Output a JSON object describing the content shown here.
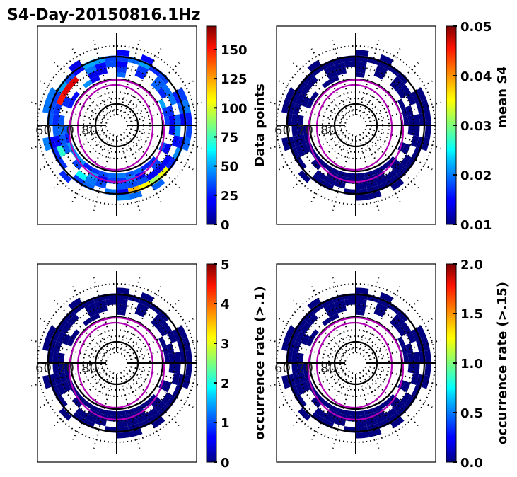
{
  "chart_data": {
    "type": "heatmap",
    "title": "S4-Day-20150816.1Hz",
    "projection": "polar (magnetic latitude vs local time)",
    "lat_rings": [
      80,
      70,
      60
    ],
    "lat_ring_labels": [
      "60",
      "70",
      "80"
    ],
    "colormap": "jet",
    "panels": [
      {
        "id": "data-points",
        "colorbar_label": "Data points",
        "clim": [
          0,
          170
        ],
        "ticks": [
          0,
          25,
          50,
          75,
          100,
          125,
          150
        ],
        "tick_labels": [
          "0",
          "25",
          "50",
          "75",
          "100",
          "125",
          "150"
        ],
        "description": "Counts mostly 10-60 in band 60-70 lat; peaks ~170 near 10-11 o'clock, ~120 near 5 o'clock"
      },
      {
        "id": "mean-s4",
        "colorbar_label": "mean S4",
        "clim": [
          0.01,
          0.05
        ],
        "ticks": [
          0.01,
          0.02,
          0.03,
          0.04,
          0.05
        ],
        "tick_labels": [
          "0.01",
          "0.02",
          "0.03",
          "0.04",
          "0.05"
        ],
        "description": "All bins at ~0.01 (dark blue)"
      },
      {
        "id": "occurrence-rate-0.1",
        "colorbar_label": "occurrence rate (>.1)",
        "clim": [
          0,
          5
        ],
        "ticks": [
          0,
          1,
          2,
          3,
          4,
          5
        ],
        "tick_labels": [
          "0",
          "1",
          "2",
          "3",
          "4",
          "5"
        ],
        "description": "All bins at ~0 (dark blue)"
      },
      {
        "id": "occurrence-rate-0.15",
        "colorbar_label": "occurrence rate (>.15)",
        "clim": [
          0,
          2
        ],
        "ticks": [
          0,
          0.5,
          1,
          1.5,
          2
        ],
        "tick_labels": [
          "0.0",
          "0.5",
          "1.0",
          "1.5",
          "2.0"
        ],
        "description": "All bins at ~0 (dark blue)"
      }
    ]
  }
}
